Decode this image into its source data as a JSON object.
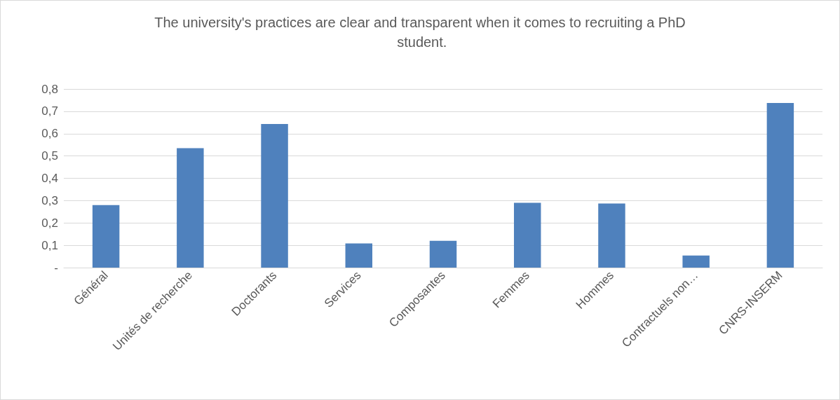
{
  "chart_data": {
    "type": "bar",
    "title": "The university's practices are clear and transparent when it comes to recruiting a PhD student.",
    "categories": [
      "Général",
      "Unités de recherche",
      "Doctorants",
      "Services",
      "Composantes",
      "Femmes",
      "Hommes",
      "Contractuels non…",
      "CNRS-INSERM"
    ],
    "values": [
      0.28,
      0.535,
      0.643,
      0.108,
      0.12,
      0.29,
      0.287,
      0.054,
      0.737
    ],
    "color": "#4f81bd",
    "ylim": [
      0,
      0.8
    ],
    "yticks": [
      {
        "value": 0,
        "label": "-"
      },
      {
        "value": 0.1,
        "label": "0,1"
      },
      {
        "value": 0.2,
        "label": "0,2"
      },
      {
        "value": 0.3,
        "label": "0,3"
      },
      {
        "value": 0.4,
        "label": "0,4"
      },
      {
        "value": 0.5,
        "label": "0,5"
      },
      {
        "value": 0.6,
        "label": "0,6"
      },
      {
        "value": 0.7,
        "label": "0,7"
      },
      {
        "value": 0.8,
        "label": "0,8"
      }
    ],
    "grid": "y"
  }
}
